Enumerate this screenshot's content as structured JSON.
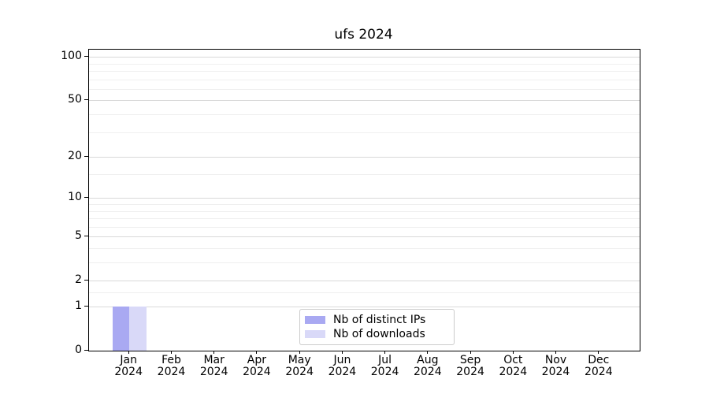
{
  "chart_data": {
    "type": "bar",
    "title": "ufs 2024",
    "x_axis": {
      "categories": [
        "Jan",
        "Feb",
        "Mar",
        "Apr",
        "May",
        "Jun",
        "Jul",
        "Aug",
        "Sep",
        "Oct",
        "Nov",
        "Dec"
      ],
      "year_label": "2024"
    },
    "y_axis": {
      "scale": "log1p",
      "ticks": [
        0,
        1,
        2,
        5,
        10,
        20,
        50,
        100
      ],
      "minor_ticks": [
        1.5,
        3,
        4,
        6,
        7,
        8,
        9,
        15,
        30,
        40,
        60,
        70,
        80,
        90
      ],
      "max": 112
    },
    "series": [
      {
        "name": "Nb of distinct IPs",
        "color": "#a9a9f2",
        "values": [
          1,
          0,
          0,
          0,
          0,
          0,
          0,
          0,
          0,
          0,
          0,
          0
        ]
      },
      {
        "name": "Nb of downloads",
        "color": "#d9d9f8",
        "values": [
          1,
          0,
          0,
          0,
          0,
          0,
          0,
          0,
          0,
          0,
          0,
          0
        ]
      }
    ],
    "legend": {
      "position": "lower-center",
      "border_color": "#cccccc"
    },
    "grid": {
      "major_color": "#d9d9d9",
      "minor_color": "#efefef"
    }
  }
}
